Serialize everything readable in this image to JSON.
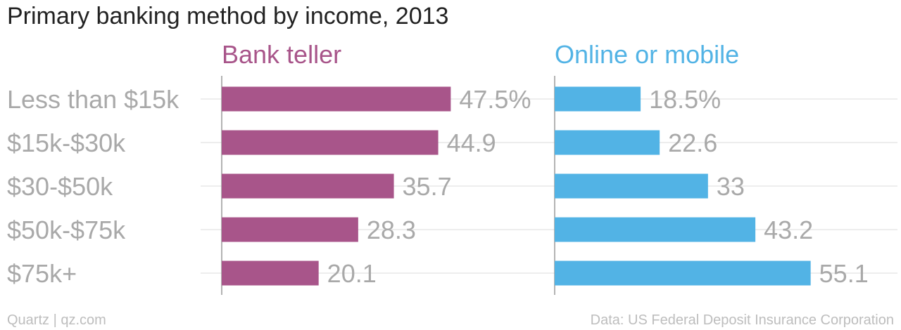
{
  "title": "Primary banking method by income, 2013",
  "footer": {
    "source_left": "Quartz | qz.com",
    "source_right": "Data: US Federal Deposit Insurance Corporation"
  },
  "colors": {
    "bank_teller": "#a8558a",
    "online_mobile": "#52b3e5"
  },
  "chart_data": {
    "type": "bar",
    "orientation": "horizontal",
    "title": "Primary banking method by income, 2013",
    "categories": [
      "Less than $15k",
      "$15k-$30k",
      "$30-$50k",
      "$50k-$75k",
      "$75k+"
    ],
    "series": [
      {
        "name": "Bank teller",
        "values": [
          47.5,
          44.9,
          35.7,
          28.3,
          20.1
        ],
        "labels": [
          "47.5%",
          "44.9",
          "35.7",
          "28.3",
          "20.1"
        ]
      },
      {
        "name": "Online or mobile",
        "values": [
          18.5,
          22.6,
          33,
          43.2,
          55.1
        ],
        "labels": [
          "18.5%",
          "22.6",
          "33",
          "43.2",
          "55.1"
        ]
      }
    ],
    "xlim": [
      0,
      100
    ],
    "unit": "%",
    "grid": true,
    "layout": "small multiples, side by side"
  }
}
